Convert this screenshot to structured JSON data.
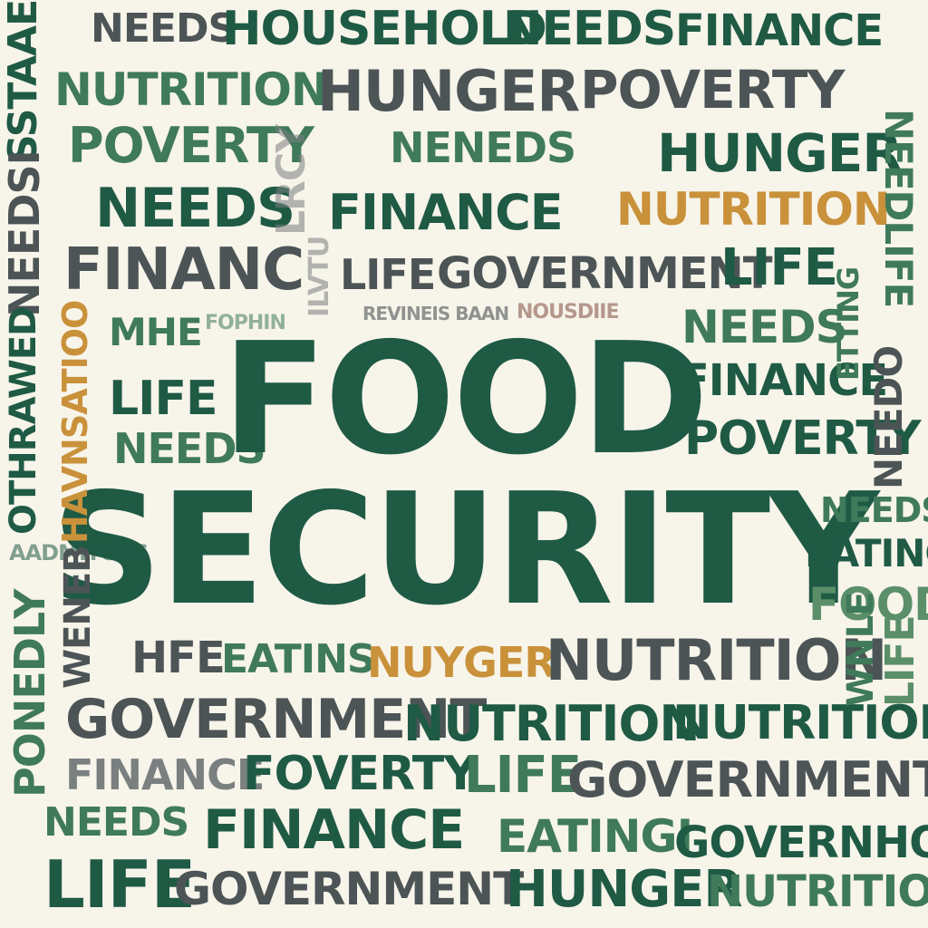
{
  "title": {
    "line1": "FOOD",
    "line2": "SECURITY"
  },
  "colors": {
    "background": "#f7f4ea",
    "dark_green": "#1f5a45",
    "mid_green": "#3f7a5a",
    "light_green": "#5b8f6a",
    "gray": "#4c5456",
    "orange": "#c9913a"
  },
  "words": {
    "needs": "NEEDS",
    "household": "HOUSEHOLD",
    "finance": "FINANCE",
    "nutrition": "NUTRITION",
    "hunger": "HUNGER",
    "poverty": "POVERTY",
    "neneds": "NENEDS",
    "financ": "FINANC",
    "life": "LIFE",
    "government": "GOVERNMENT",
    "mhe": "MHE",
    "eating": "EATING",
    "food": "FOOD",
    "hfe": "HFE",
    "eatins": "EATINS",
    "nuyger": "NUYGER",
    "foverty": "FOVERTY",
    "eatingi": "EATINGI",
    "governhold": "GOVERNHOLD",
    "aaeer": "SSTAAEER",
    "needsi": "NEEDSI",
    "othrawed": "OTHRAWED",
    "ponedly": "PONEDLY",
    "hausnatio": "HAVNSATIOO",
    "aadmitors": "AADMITORS",
    "weneb": "WENEB",
    "lrcy": "LRCY",
    "ilvtu": "ILVTU",
    "revineis": "REVINEIS BAAN",
    "nousidie": "NOUSDIIE",
    "nedlfe": "NEEDLIFE",
    "needo": "NEEDO",
    "etting": "ETTING",
    "wnle": "WNLE",
    "life2": "LIFE",
    "fophin": "FOPHIN"
  }
}
